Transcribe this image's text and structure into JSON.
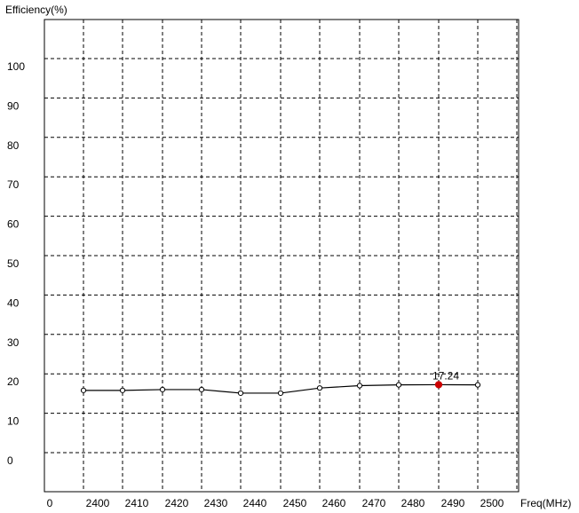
{
  "chart_data": {
    "type": "line",
    "title": "",
    "xlabel": "Freq(MHz)",
    "ylabel": "Efficiency(%)",
    "x_tick_labels": [
      "0",
      "2400",
      "2410",
      "2420",
      "2430",
      "2440",
      "2450",
      "2460",
      "2470",
      "2480",
      "2490",
      "2500"
    ],
    "y_tick_labels": [
      "0",
      "10",
      "20",
      "30",
      "40",
      "50",
      "60",
      "70",
      "80",
      "90",
      "100"
    ],
    "grid": true,
    "grid_style": "dashed",
    "series": [
      {
        "color": "#000000",
        "x": [
          2400,
          2410,
          2420,
          2430,
          2440,
          2450,
          2460,
          2470,
          2480,
          2490,
          2500
        ],
        "values": [
          15.8,
          15.8,
          16.0,
          16.0,
          15.1,
          15.1,
          16.4,
          17.0,
          17.2,
          17.24,
          17.2
        ]
      }
    ],
    "highlight": {
      "x": 2490,
      "value": 17.24,
      "label": "17.24",
      "color": "#cc0000"
    }
  }
}
